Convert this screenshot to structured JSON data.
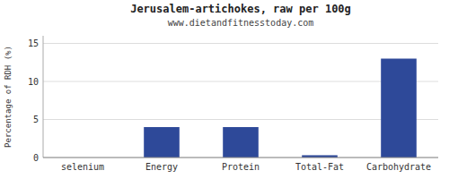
{
  "chart_data": {
    "type": "bar",
    "title": "Jerusalem-artichokes, raw per 100g",
    "subtitle": "www.dietandfitnesstoday.com",
    "categories": [
      "selenium",
      "Energy",
      "Protein",
      "Total-Fat",
      "Carbohydrate"
    ],
    "values": [
      0.0,
      4.0,
      4.0,
      0.3,
      13.0
    ],
    "color": "#2e4999",
    "ylim": [
      0,
      16
    ],
    "yticks": [
      0,
      5,
      10,
      15
    ],
    "ylabel": "Percentage of RDH (%)",
    "grid": true
  }
}
